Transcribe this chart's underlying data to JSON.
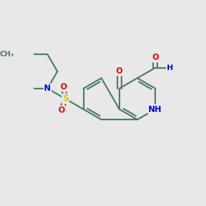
{
  "bg_color": "#e8e8e8",
  "bond_color": "#4a7a6a",
  "bond_width": 1.6,
  "atom_colors": {
    "N": "#0000ff",
    "O": "#ff0000",
    "S": "#cccc00",
    "C": "#4a7a6a"
  },
  "font_size": 8.5,
  "xlim": [
    -3.0,
    3.2
  ],
  "ylim": [
    -2.8,
    2.5
  ]
}
